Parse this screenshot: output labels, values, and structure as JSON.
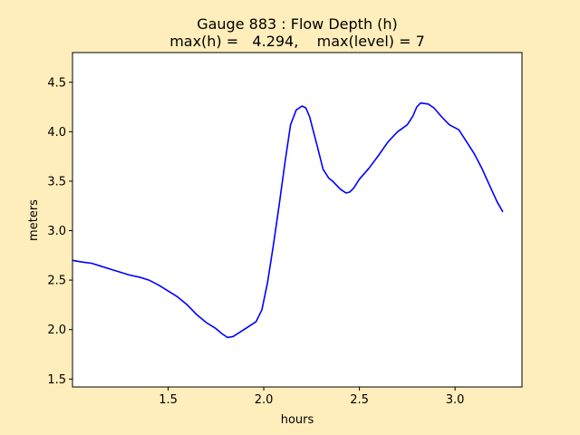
{
  "chart_data": {
    "type": "line",
    "title": "Gauge 883 : Flow Depth (h)",
    "subtitle": "max(h) =   4.294,    max(level) = 7",
    "xlabel": "hours",
    "ylabel": "meters",
    "xlim": [
      1.0,
      3.35
    ],
    "ylim": [
      1.42,
      4.8
    ],
    "xticks": [
      1.5,
      2.0,
      2.5,
      3.0
    ],
    "xtick_labels": [
      "1.5",
      "2.0",
      "2.5",
      "3.0"
    ],
    "yticks": [
      1.5,
      2.0,
      2.5,
      3.0,
      3.5,
      4.0,
      4.5
    ],
    "ytick_labels": [
      "1.5",
      "2.0",
      "2.5",
      "3.0",
      "3.5",
      "4.0",
      "4.5"
    ],
    "grid": false,
    "colors": {
      "line": "#0000ff",
      "figure_bg": "#ffeebb",
      "axes_bg": "#ffffff"
    },
    "series": [
      {
        "x": [
          1.0,
          1.03,
          1.06,
          1.1,
          1.15,
          1.2,
          1.25,
          1.3,
          1.35,
          1.4,
          1.45,
          1.5,
          1.55,
          1.6,
          1.65,
          1.7,
          1.75,
          1.78,
          1.81,
          1.84,
          1.88,
          1.92,
          1.96,
          1.99,
          2.02,
          2.05,
          2.08,
          2.11,
          2.14,
          2.17,
          2.2,
          2.22,
          2.24,
          2.26,
          2.28,
          2.31,
          2.34,
          2.36,
          2.38,
          2.4,
          2.43,
          2.45,
          2.47,
          2.5,
          2.55,
          2.6,
          2.65,
          2.7,
          2.75,
          2.78,
          2.8,
          2.82,
          2.86,
          2.89,
          2.93,
          2.97,
          3.02,
          3.06,
          3.1,
          3.14,
          3.18,
          3.22,
          3.25
        ],
        "y": [
          2.7,
          2.69,
          2.68,
          2.67,
          2.64,
          2.61,
          2.58,
          2.55,
          2.53,
          2.5,
          2.45,
          2.39,
          2.33,
          2.25,
          2.15,
          2.07,
          2.01,
          1.96,
          1.92,
          1.93,
          1.98,
          2.03,
          2.08,
          2.2,
          2.48,
          2.85,
          3.25,
          3.68,
          4.07,
          4.22,
          4.26,
          4.24,
          4.15,
          4.0,
          3.85,
          3.62,
          3.53,
          3.5,
          3.46,
          3.42,
          3.38,
          3.39,
          3.43,
          3.52,
          3.63,
          3.76,
          3.9,
          4.0,
          4.07,
          4.16,
          4.25,
          4.29,
          4.28,
          4.24,
          4.15,
          4.07,
          4.02,
          3.9,
          3.78,
          3.63,
          3.46,
          3.29,
          3.19
        ]
      }
    ]
  }
}
